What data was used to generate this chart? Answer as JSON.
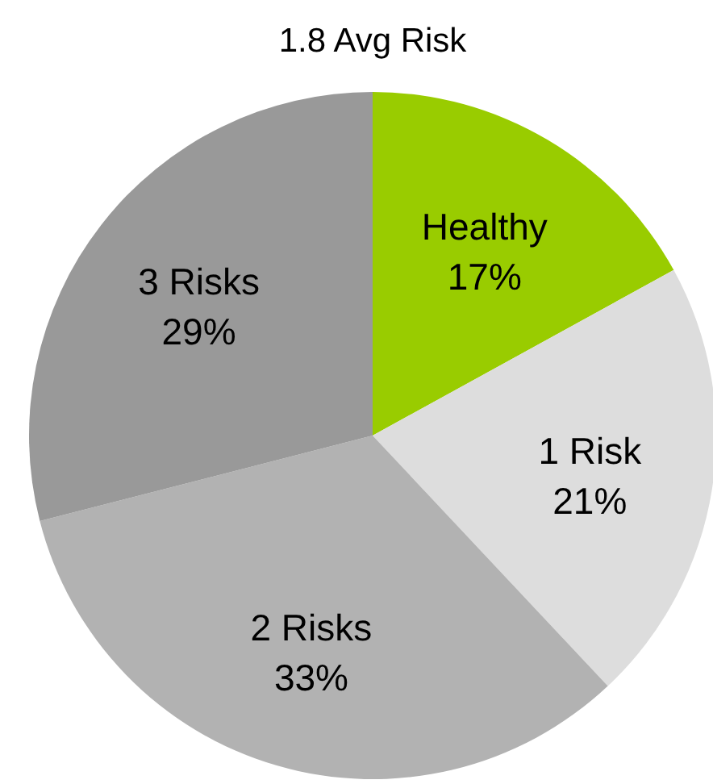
{
  "chart_data": {
    "type": "pie",
    "title": "1.8 Avg Risk",
    "categories": [
      "Healthy",
      "1 Risk",
      "2 Risks",
      "3 Risks"
    ],
    "values": [
      17,
      21,
      33,
      29
    ],
    "value_labels": [
      "17%",
      "21%",
      "33%",
      "29%"
    ],
    "colors": [
      "#99cc00",
      "#dddddd",
      "#b2b2b2",
      "#999999"
    ]
  }
}
